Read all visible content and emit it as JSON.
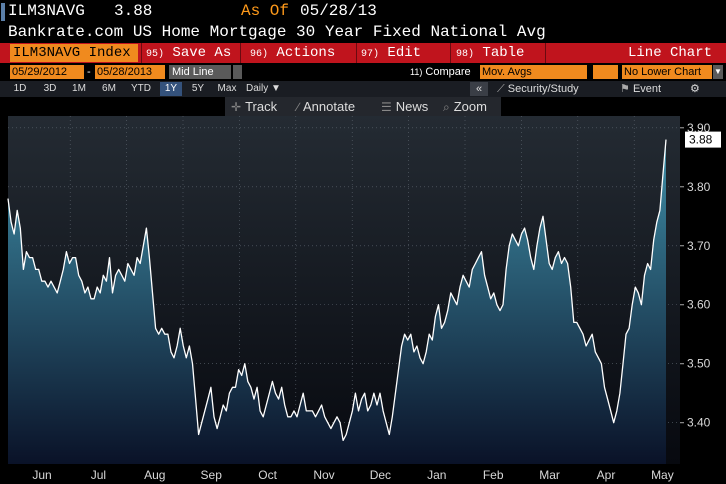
{
  "header": {
    "ticker": "ILM3NAVG",
    "last_price": "3.88",
    "as_of_label": "As Of",
    "as_of_date": "05/28/13",
    "description": "Bankrate.com US Home Mortgage 30 Year Fixed National Avg"
  },
  "menubar": {
    "index_label": "ILM3NAVG Index",
    "items": [
      {
        "num": "95)",
        "label": "Save As"
      },
      {
        "num": "96)",
        "label": "Actions"
      },
      {
        "num": "97)",
        "label": "Edit"
      },
      {
        "num": "98)",
        "label": "Table"
      }
    ],
    "chart_type": "Line Chart"
  },
  "options": {
    "start_date": "05/29/2012",
    "end_date": "05/28/2013",
    "line_type": "Mid Line",
    "compare_num": "11)",
    "compare_label": "Compare",
    "mov_avgs": "Mov. Avgs",
    "lower_chart": "No Lower Chart"
  },
  "timeframes": {
    "items": [
      "1D",
      "3D",
      "1M",
      "6M",
      "YTD",
      "1Y",
      "5Y",
      "Max"
    ],
    "active": "1Y",
    "period": "Daily",
    "collapse": "«",
    "security_study": "Security/Study",
    "event": "Event",
    "settings_icon": "gear-icon"
  },
  "tools": {
    "track": "Track",
    "annotate": "Annotate",
    "news": "News",
    "zoom": "Zoom"
  },
  "colors": {
    "line": "#ffffff",
    "fill_top": "#3f8fa8",
    "fill_bottom": "#0a1228",
    "bg_top": "#242b33",
    "bg_bottom": "#07090f",
    "menubar": "#c0141d",
    "field": "#f08a1e",
    "accent": "#ff9a1a"
  },
  "chart_data": {
    "type": "area",
    "title": "Bankrate.com US Home Mortgage 30 Year Fixed National Avg",
    "xlabel": "",
    "ylabel": "",
    "ylim": [
      3.33,
      3.92
    ],
    "yticks": [
      3.4,
      3.5,
      3.6,
      3.7,
      3.8,
      3.9
    ],
    "ytick_labels": [
      "3.40",
      "3.50",
      "3.60",
      "3.70",
      "3.80",
      "3.90"
    ],
    "month_labels": [
      "Jun",
      "Jul",
      "Aug",
      "Sep",
      "Oct",
      "Nov",
      "Dec",
      "Jan",
      "Feb",
      "Mar",
      "Apr",
      "May"
    ],
    "last_value_label": "3.88",
    "grid": true,
    "series": [
      {
        "values": [
          3.78,
          3.74,
          3.72,
          3.76,
          3.73,
          3.66,
          3.69,
          3.68,
          3.68,
          3.66,
          3.66,
          3.64,
          3.64,
          3.63,
          3.64,
          3.63,
          3.62,
          3.64,
          3.66,
          3.69,
          3.67,
          3.68,
          3.68,
          3.65,
          3.64,
          3.62,
          3.63,
          3.61,
          3.61,
          3.63,
          3.62,
          3.65,
          3.64,
          3.68,
          3.62,
          3.65,
          3.66,
          3.65,
          3.64,
          3.67,
          3.66,
          3.65,
          3.68,
          3.67,
          3.7,
          3.73,
          3.68,
          3.62,
          3.56,
          3.55,
          3.56,
          3.55,
          3.55,
          3.52,
          3.51,
          3.53,
          3.56,
          3.53,
          3.51,
          3.53,
          3.5,
          3.44,
          3.38,
          3.4,
          3.42,
          3.44,
          3.46,
          3.41,
          3.39,
          3.41,
          3.43,
          3.42,
          3.45,
          3.46,
          3.46,
          3.49,
          3.48,
          3.5,
          3.47,
          3.46,
          3.44,
          3.46,
          3.42,
          3.41,
          3.43,
          3.45,
          3.47,
          3.45,
          3.44,
          3.46,
          3.43,
          3.41,
          3.41,
          3.42,
          3.41,
          3.43,
          3.45,
          3.42,
          3.42,
          3.42,
          3.41,
          3.42,
          3.43,
          3.41,
          3.4,
          3.39,
          3.4,
          3.41,
          3.4,
          3.37,
          3.38,
          3.4,
          3.42,
          3.45,
          3.42,
          3.44,
          3.45,
          3.42,
          3.43,
          3.45,
          3.43,
          3.45,
          3.42,
          3.4,
          3.38,
          3.41,
          3.45,
          3.49,
          3.53,
          3.55,
          3.54,
          3.55,
          3.52,
          3.53,
          3.51,
          3.5,
          3.52,
          3.55,
          3.54,
          3.58,
          3.6,
          3.56,
          3.57,
          3.59,
          3.62,
          3.61,
          3.6,
          3.63,
          3.65,
          3.64,
          3.63,
          3.66,
          3.67,
          3.68,
          3.69,
          3.65,
          3.63,
          3.61,
          3.62,
          3.6,
          3.59,
          3.6,
          3.66,
          3.7,
          3.72,
          3.71,
          3.7,
          3.72,
          3.73,
          3.71,
          3.68,
          3.66,
          3.7,
          3.73,
          3.75,
          3.71,
          3.67,
          3.66,
          3.68,
          3.69,
          3.67,
          3.68,
          3.67,
          3.63,
          3.57,
          3.57,
          3.56,
          3.55,
          3.53,
          3.54,
          3.55,
          3.52,
          3.51,
          3.5,
          3.46,
          3.44,
          3.42,
          3.4,
          3.42,
          3.45,
          3.5,
          3.55,
          3.56,
          3.6,
          3.63,
          3.62,
          3.6,
          3.65,
          3.67,
          3.66,
          3.71,
          3.74,
          3.76,
          3.82,
          3.88
        ]
      }
    ]
  }
}
